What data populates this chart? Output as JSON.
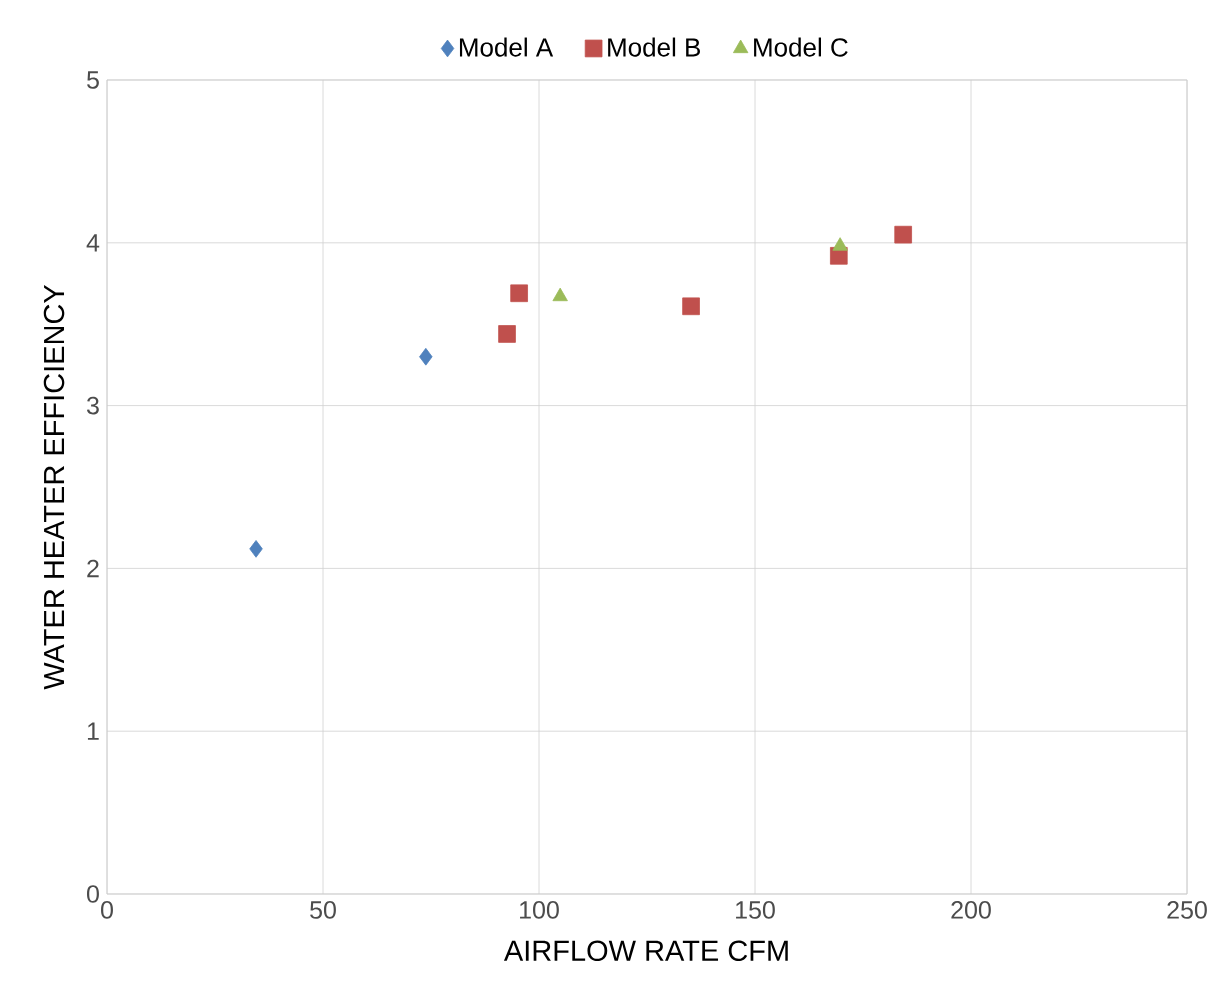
{
  "chart_data": {
    "type": "scatter",
    "xlabel": "AIRFLOW RATE CFM",
    "ylabel": "WATER HEATER EFFICIENCY",
    "xlim": [
      0,
      250
    ],
    "xticks": [
      0,
      50,
      100,
      150,
      200,
      250
    ],
    "ylim": [
      0,
      5
    ],
    "yticks": [
      0,
      1,
      2,
      3,
      4,
      5
    ],
    "grid": true,
    "legend": "top",
    "series": [
      {
        "name": "Model A",
        "color": "#4f81bd",
        "marker": "diamond",
        "x": [
          34.5,
          73.8
        ],
        "values": [
          2.12,
          3.3
        ]
      },
      {
        "name": "Model B",
        "color": "#c0504d",
        "marker": "square",
        "x": [
          92.6,
          95.4,
          135.2,
          169.4,
          184.3
        ],
        "values": [
          3.44,
          3.69,
          3.61,
          3.92,
          4.05
        ]
      },
      {
        "name": "Model C",
        "color": "#9bbb59",
        "marker": "triangle",
        "x": [
          104.9,
          169.7
        ],
        "values": [
          3.67,
          3.98
        ]
      }
    ]
  }
}
